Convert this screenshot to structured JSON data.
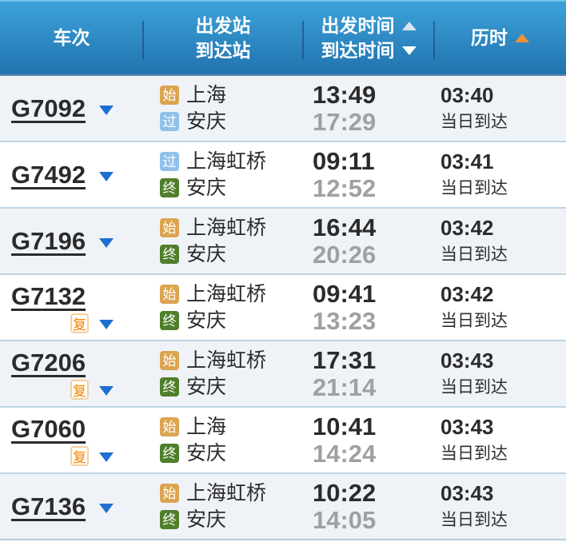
{
  "header": {
    "col_train": "车次",
    "col_station_line1": "出发站",
    "col_station_line2": "到达站",
    "col_time_line1": "出发时间",
    "col_time_line2": "到达时间",
    "col_duration": "历时",
    "sort": {
      "depart_time": "asc-arrow-inactive",
      "arrive_time": "desc-arrow-inactive",
      "duration": "asc-arrow-active"
    }
  },
  "badges": {
    "start": "始",
    "pass": "过",
    "end": "终",
    "fuxing": "复"
  },
  "colors": {
    "header_top": "#3da2da",
    "header_bottom": "#2173ae",
    "badge_start": "#dba44f",
    "badge_pass": "#8fc1ea",
    "badge_end": "#4f7f2b",
    "fuxing_orange": "#f28200",
    "sort_active_orange": "#f0913c",
    "caret_blue": "#1f6fd0",
    "row_alt_bg": "#eff3f7",
    "arrive_time_gray": "#9fa0a2"
  },
  "rows": [
    {
      "train_no": "G7092",
      "fuxing": false,
      "from": {
        "badge": "start",
        "label": "始",
        "name": "上海"
      },
      "to": {
        "badge": "pass",
        "label": "过",
        "name": "安庆"
      },
      "depart": "13:49",
      "arrive": "17:29",
      "duration": "03:40",
      "arrive_day": "当日到达"
    },
    {
      "train_no": "G7492",
      "fuxing": false,
      "from": {
        "badge": "pass",
        "label": "过",
        "name": "上海虹桥"
      },
      "to": {
        "badge": "end",
        "label": "终",
        "name": "安庆"
      },
      "depart": "09:11",
      "arrive": "12:52",
      "duration": "03:41",
      "arrive_day": "当日到达"
    },
    {
      "train_no": "G7196",
      "fuxing": false,
      "from": {
        "badge": "start",
        "label": "始",
        "name": "上海虹桥"
      },
      "to": {
        "badge": "end",
        "label": "终",
        "name": "安庆"
      },
      "depart": "16:44",
      "arrive": "20:26",
      "duration": "03:42",
      "arrive_day": "当日到达"
    },
    {
      "train_no": "G7132",
      "fuxing": true,
      "from": {
        "badge": "start",
        "label": "始",
        "name": "上海虹桥"
      },
      "to": {
        "badge": "end",
        "label": "终",
        "name": "安庆"
      },
      "depart": "09:41",
      "arrive": "13:23",
      "duration": "03:42",
      "arrive_day": "当日到达"
    },
    {
      "train_no": "G7206",
      "fuxing": true,
      "from": {
        "badge": "start",
        "label": "始",
        "name": "上海虹桥"
      },
      "to": {
        "badge": "end",
        "label": "终",
        "name": "安庆"
      },
      "depart": "17:31",
      "arrive": "21:14",
      "duration": "03:43",
      "arrive_day": "当日到达"
    },
    {
      "train_no": "G7060",
      "fuxing": true,
      "from": {
        "badge": "start",
        "label": "始",
        "name": "上海"
      },
      "to": {
        "badge": "end",
        "label": "终",
        "name": "安庆"
      },
      "depart": "10:41",
      "arrive": "14:24",
      "duration": "03:43",
      "arrive_day": "当日到达"
    },
    {
      "train_no": "G7136",
      "fuxing": false,
      "from": {
        "badge": "start",
        "label": "始",
        "name": "上海虹桥"
      },
      "to": {
        "badge": "end",
        "label": "终",
        "name": "安庆"
      },
      "depart": "10:22",
      "arrive": "14:05",
      "duration": "03:43",
      "arrive_day": "当日到达"
    }
  ]
}
